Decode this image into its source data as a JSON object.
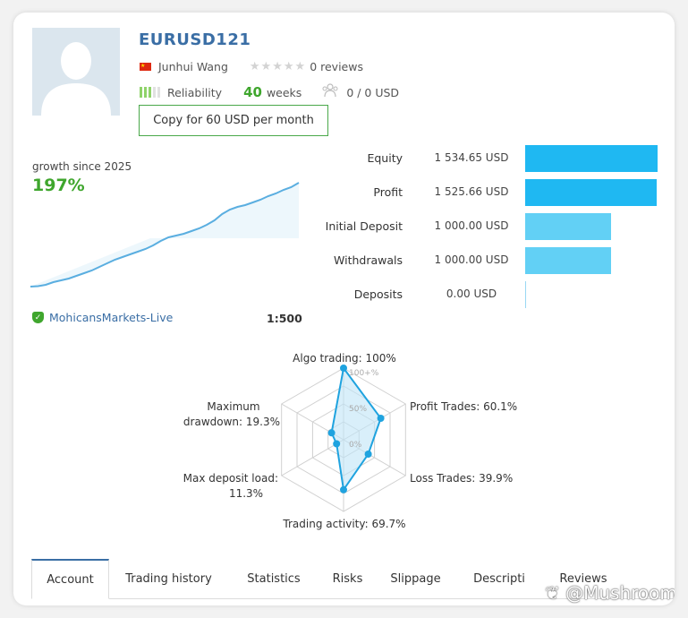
{
  "account": {
    "name": "EURUSD121",
    "owner": "Junhui Wang",
    "reviews": "0 reviews",
    "reliability_label": "Reliability",
    "weeks_value": "40",
    "weeks_label": "weeks",
    "subscribers": "0 / 0 USD",
    "copy_button": "Copy for 60 USD per month"
  },
  "growth": {
    "label": "growth since 2025",
    "value": "197%",
    "series": [
      0,
      0.5,
      2,
      5,
      7,
      9,
      12,
      15,
      18,
      22,
      26,
      30,
      33,
      36,
      39,
      42,
      46,
      51,
      55,
      57,
      59,
      62,
      65,
      69,
      74,
      81,
      86,
      89,
      91,
      94,
      97,
      101,
      104,
      108,
      111,
      116
    ]
  },
  "broker": {
    "name": "MohicansMarkets-Live",
    "leverage": "1:500"
  },
  "stats": [
    {
      "label": "Equity",
      "value": "1 534.65 USD",
      "fraction": 1.0,
      "color": "#1fb8f2"
    },
    {
      "label": "Profit",
      "value": "1 525.66 USD",
      "fraction": 0.994,
      "color": "#1fb8f2"
    },
    {
      "label": "Initial Deposit",
      "value": "1 000.00 USD",
      "fraction": 0.652,
      "color": "#62d0f5"
    },
    {
      "label": "Withdrawals",
      "value": "1 000.00 USD",
      "fraction": 0.652,
      "color": "#62d0f5"
    },
    {
      "label": "Deposits",
      "value": "0.00 USD",
      "fraction": 0.0,
      "color": "#62d0f5"
    }
  ],
  "radar": {
    "axes": [
      {
        "label": "Algo trading: 100%",
        "value": 100
      },
      {
        "label": "Profit Trades: 60.1%",
        "value": 60.1
      },
      {
        "label": "Loss Trades: 39.9%",
        "value": 39.9
      },
      {
        "label": "Trading activity: 69.7%",
        "value": 69.7
      },
      {
        "label": "Max deposit load: 11.3%",
        "value": 11.3
      },
      {
        "label": "Maximum drawdown: 19.3%",
        "value": 19.3
      }
    ],
    "label_lines": {
      "algo": "Algo trading: 100%",
      "profit": "Profit Trades: 60.1%",
      "loss": "Loss Trades: 39.9%",
      "activity": "Trading activity: 69.7%",
      "load_1": "Max deposit load:",
      "load_2": "11.3%",
      "dd_1": "Maximum",
      "dd_2": "drawdown: 19.3%"
    },
    "ticks": {
      "t100": "100+%",
      "t50": "50%",
      "t0": "0%"
    }
  },
  "tabs": [
    {
      "label": "Account",
      "active": true
    },
    {
      "label": "Trading history",
      "active": false
    },
    {
      "label": "Statistics",
      "active": false
    },
    {
      "label": "Risks",
      "active": false
    },
    {
      "label": "Slippage",
      "active": false
    },
    {
      "label": "Descripti",
      "active": false
    },
    {
      "label": "Reviews",
      "active": false
    }
  ],
  "watermark": "❦ @Mushroom",
  "colors": {
    "accent": "#3a6ea5",
    "green": "#3fa62d",
    "bar_dark": "#1fb8f2",
    "bar_light": "#62d0f5",
    "line": "#5aaee0"
  }
}
